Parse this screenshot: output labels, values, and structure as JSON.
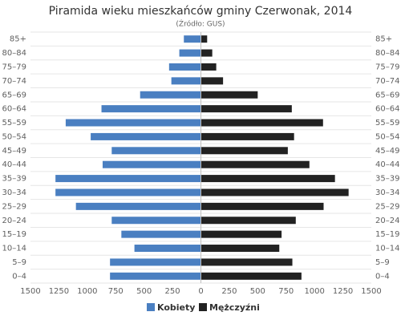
{
  "chart_data": {
    "type": "pyramid",
    "title": "Piramida wieku mieszkańców gminy Czerwonak, 2014",
    "subtitle": "(Źródło: GUS)",
    "categories": [
      "85+",
      "80–84",
      "75–79",
      "70–74",
      "65–69",
      "60–64",
      "55–59",
      "50–54",
      "45–49",
      "40–44",
      "35–39",
      "30–34",
      "25–29",
      "20–24",
      "15–19",
      "10–14",
      "5–9",
      "0–4"
    ],
    "series": [
      {
        "name": "Kobiety",
        "color": "#4a7fc1",
        "values": [
          -150,
          -190,
          -280,
          -260,
          -535,
          -875,
          -1190,
          -970,
          -785,
          -865,
          -1280,
          -1280,
          -1100,
          -785,
          -700,
          -585,
          -800,
          -800
        ]
      },
      {
        "name": "Mężczyźni",
        "color": "#222222",
        "values": [
          55,
          100,
          135,
          195,
          500,
          800,
          1075,
          820,
          765,
          955,
          1180,
          1300,
          1080,
          835,
          710,
          690,
          805,
          885
        ]
      }
    ],
    "xlim": [
      -1500,
      1500
    ],
    "xticks": [
      {
        "value": -1500,
        "label": "1500"
      },
      {
        "value": -1250,
        "label": "1250"
      },
      {
        "value": -1000,
        "label": "1000"
      },
      {
        "value": -750,
        "label": "750"
      },
      {
        "value": -500,
        "label": "500"
      },
      {
        "value": -250,
        "label": "250"
      },
      0,
      250,
      500,
      750,
      1000,
      1250,
      1500
    ]
  }
}
